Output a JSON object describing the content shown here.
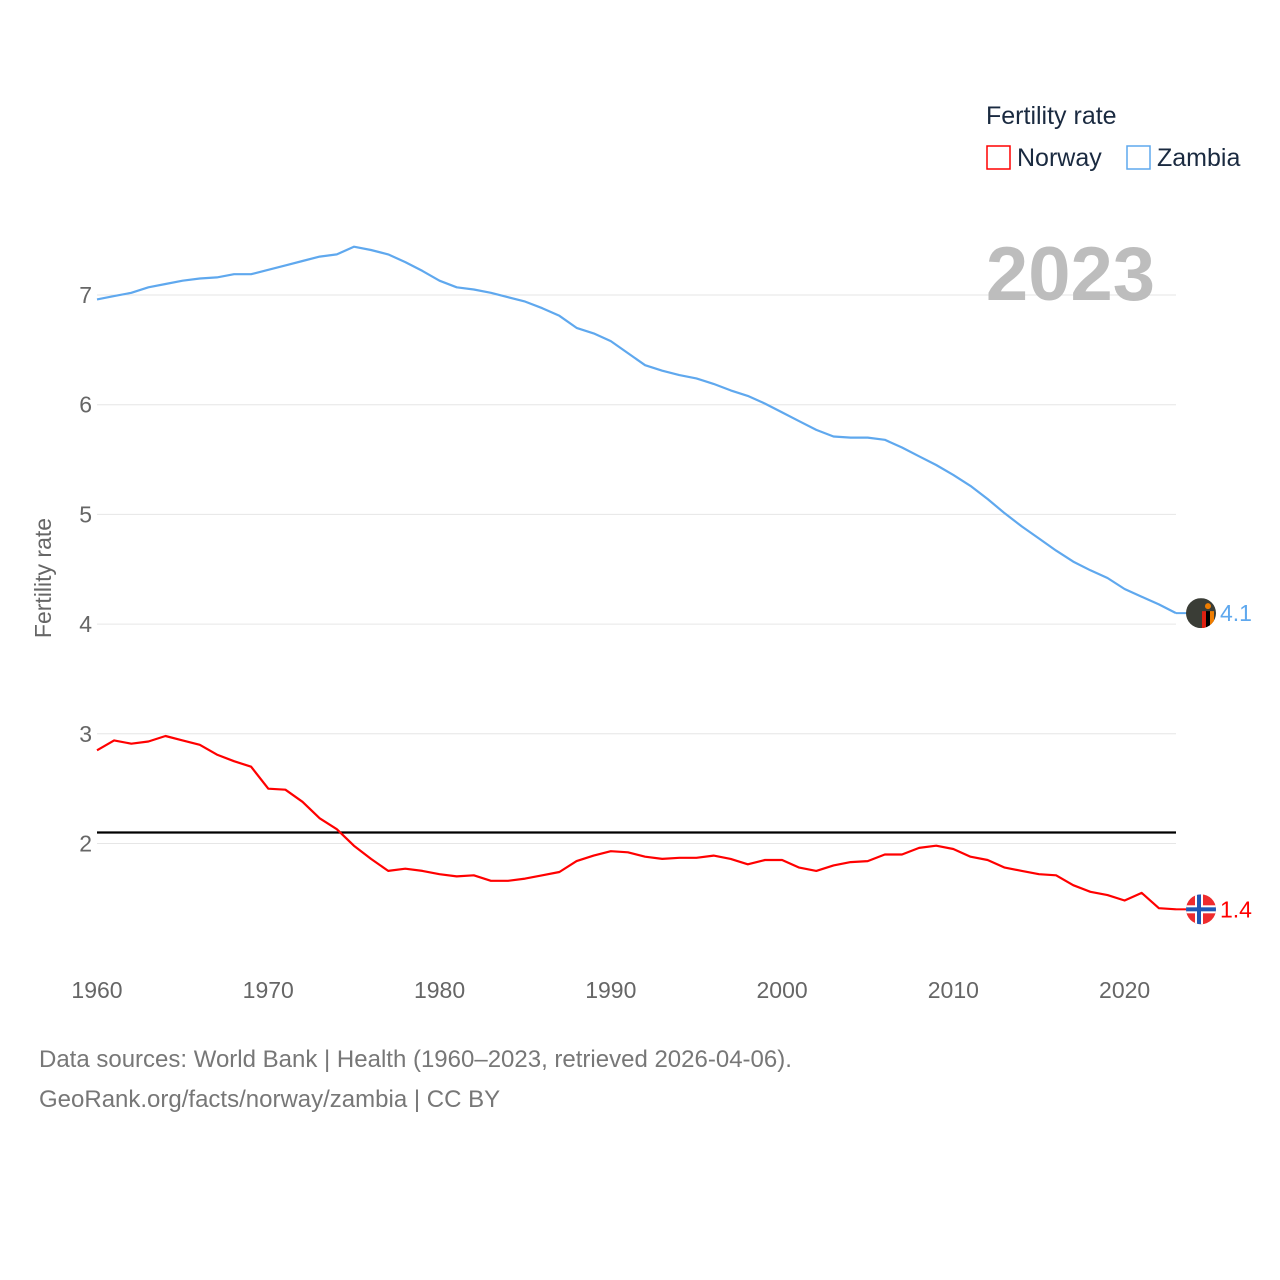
{
  "chart_data": {
    "type": "line",
    "ylabel": "Fertility rate",
    "xlabel": "",
    "legend_title": "Fertility rate",
    "legend_position": "top-right",
    "year_label": "2023",
    "xlim": [
      1960,
      2023
    ],
    "ylim": [
      1.0,
      7.9
    ],
    "x_ticks": [
      1960,
      1970,
      1980,
      1990,
      2000,
      2010,
      2020
    ],
    "y_ticks": [
      2,
      3,
      4,
      5,
      6,
      7
    ],
    "grid": true,
    "reference_line": 2.1,
    "x": [
      1960,
      1961,
      1962,
      1963,
      1964,
      1965,
      1966,
      1967,
      1968,
      1969,
      1970,
      1971,
      1972,
      1973,
      1974,
      1975,
      1976,
      1977,
      1978,
      1979,
      1980,
      1981,
      1982,
      1983,
      1984,
      1985,
      1986,
      1987,
      1988,
      1989,
      1990,
      1991,
      1992,
      1993,
      1994,
      1995,
      1996,
      1997,
      1998,
      1999,
      2000,
      2001,
      2002,
      2003,
      2004,
      2005,
      2006,
      2007,
      2008,
      2009,
      2010,
      2011,
      2012,
      2013,
      2014,
      2015,
      2016,
      2017,
      2018,
      2019,
      2020,
      2021,
      2022,
      2023
    ],
    "series": [
      {
        "name": "Norway",
        "color": "#ff0000",
        "end_label": "1.4",
        "values": [
          2.85,
          2.94,
          2.91,
          2.93,
          2.98,
          2.94,
          2.9,
          2.81,
          2.75,
          2.7,
          2.5,
          2.49,
          2.38,
          2.23,
          2.13,
          1.98,
          1.86,
          1.75,
          1.77,
          1.75,
          1.72,
          1.7,
          1.71,
          1.66,
          1.66,
          1.68,
          1.71,
          1.74,
          1.84,
          1.89,
          1.93,
          1.92,
          1.88,
          1.86,
          1.87,
          1.87,
          1.89,
          1.86,
          1.81,
          1.85,
          1.85,
          1.78,
          1.75,
          1.8,
          1.83,
          1.84,
          1.9,
          1.9,
          1.96,
          1.98,
          1.95,
          1.88,
          1.85,
          1.78,
          1.75,
          1.72,
          1.71,
          1.62,
          1.56,
          1.53,
          1.48,
          1.55,
          1.41,
          1.4
        ]
      },
      {
        "name": "Zambia",
        "color": "#5fa8ee",
        "end_label": "4.1",
        "values": [
          6.96,
          6.99,
          7.02,
          7.07,
          7.1,
          7.13,
          7.15,
          7.16,
          7.19,
          7.19,
          7.23,
          7.27,
          7.31,
          7.35,
          7.37,
          7.44,
          7.41,
          7.37,
          7.3,
          7.22,
          7.13,
          7.07,
          7.05,
          7.02,
          6.98,
          6.94,
          6.88,
          6.81,
          6.7,
          6.65,
          6.58,
          6.47,
          6.36,
          6.31,
          6.27,
          6.24,
          6.19,
          6.13,
          6.08,
          6.01,
          5.93,
          5.85,
          5.77,
          5.71,
          5.7,
          5.7,
          5.68,
          5.61,
          5.53,
          5.45,
          5.36,
          5.26,
          5.14,
          5.01,
          4.89,
          4.78,
          4.67,
          4.57,
          4.49,
          4.42,
          4.32,
          4.25,
          4.18,
          4.1
        ]
      }
    ]
  },
  "footer": {
    "line1": "Data sources: World Bank | Health (1960–2023, retrieved 2026-04-06).",
    "line2": "GeoRank.org/facts/norway/zambia | CC BY"
  }
}
